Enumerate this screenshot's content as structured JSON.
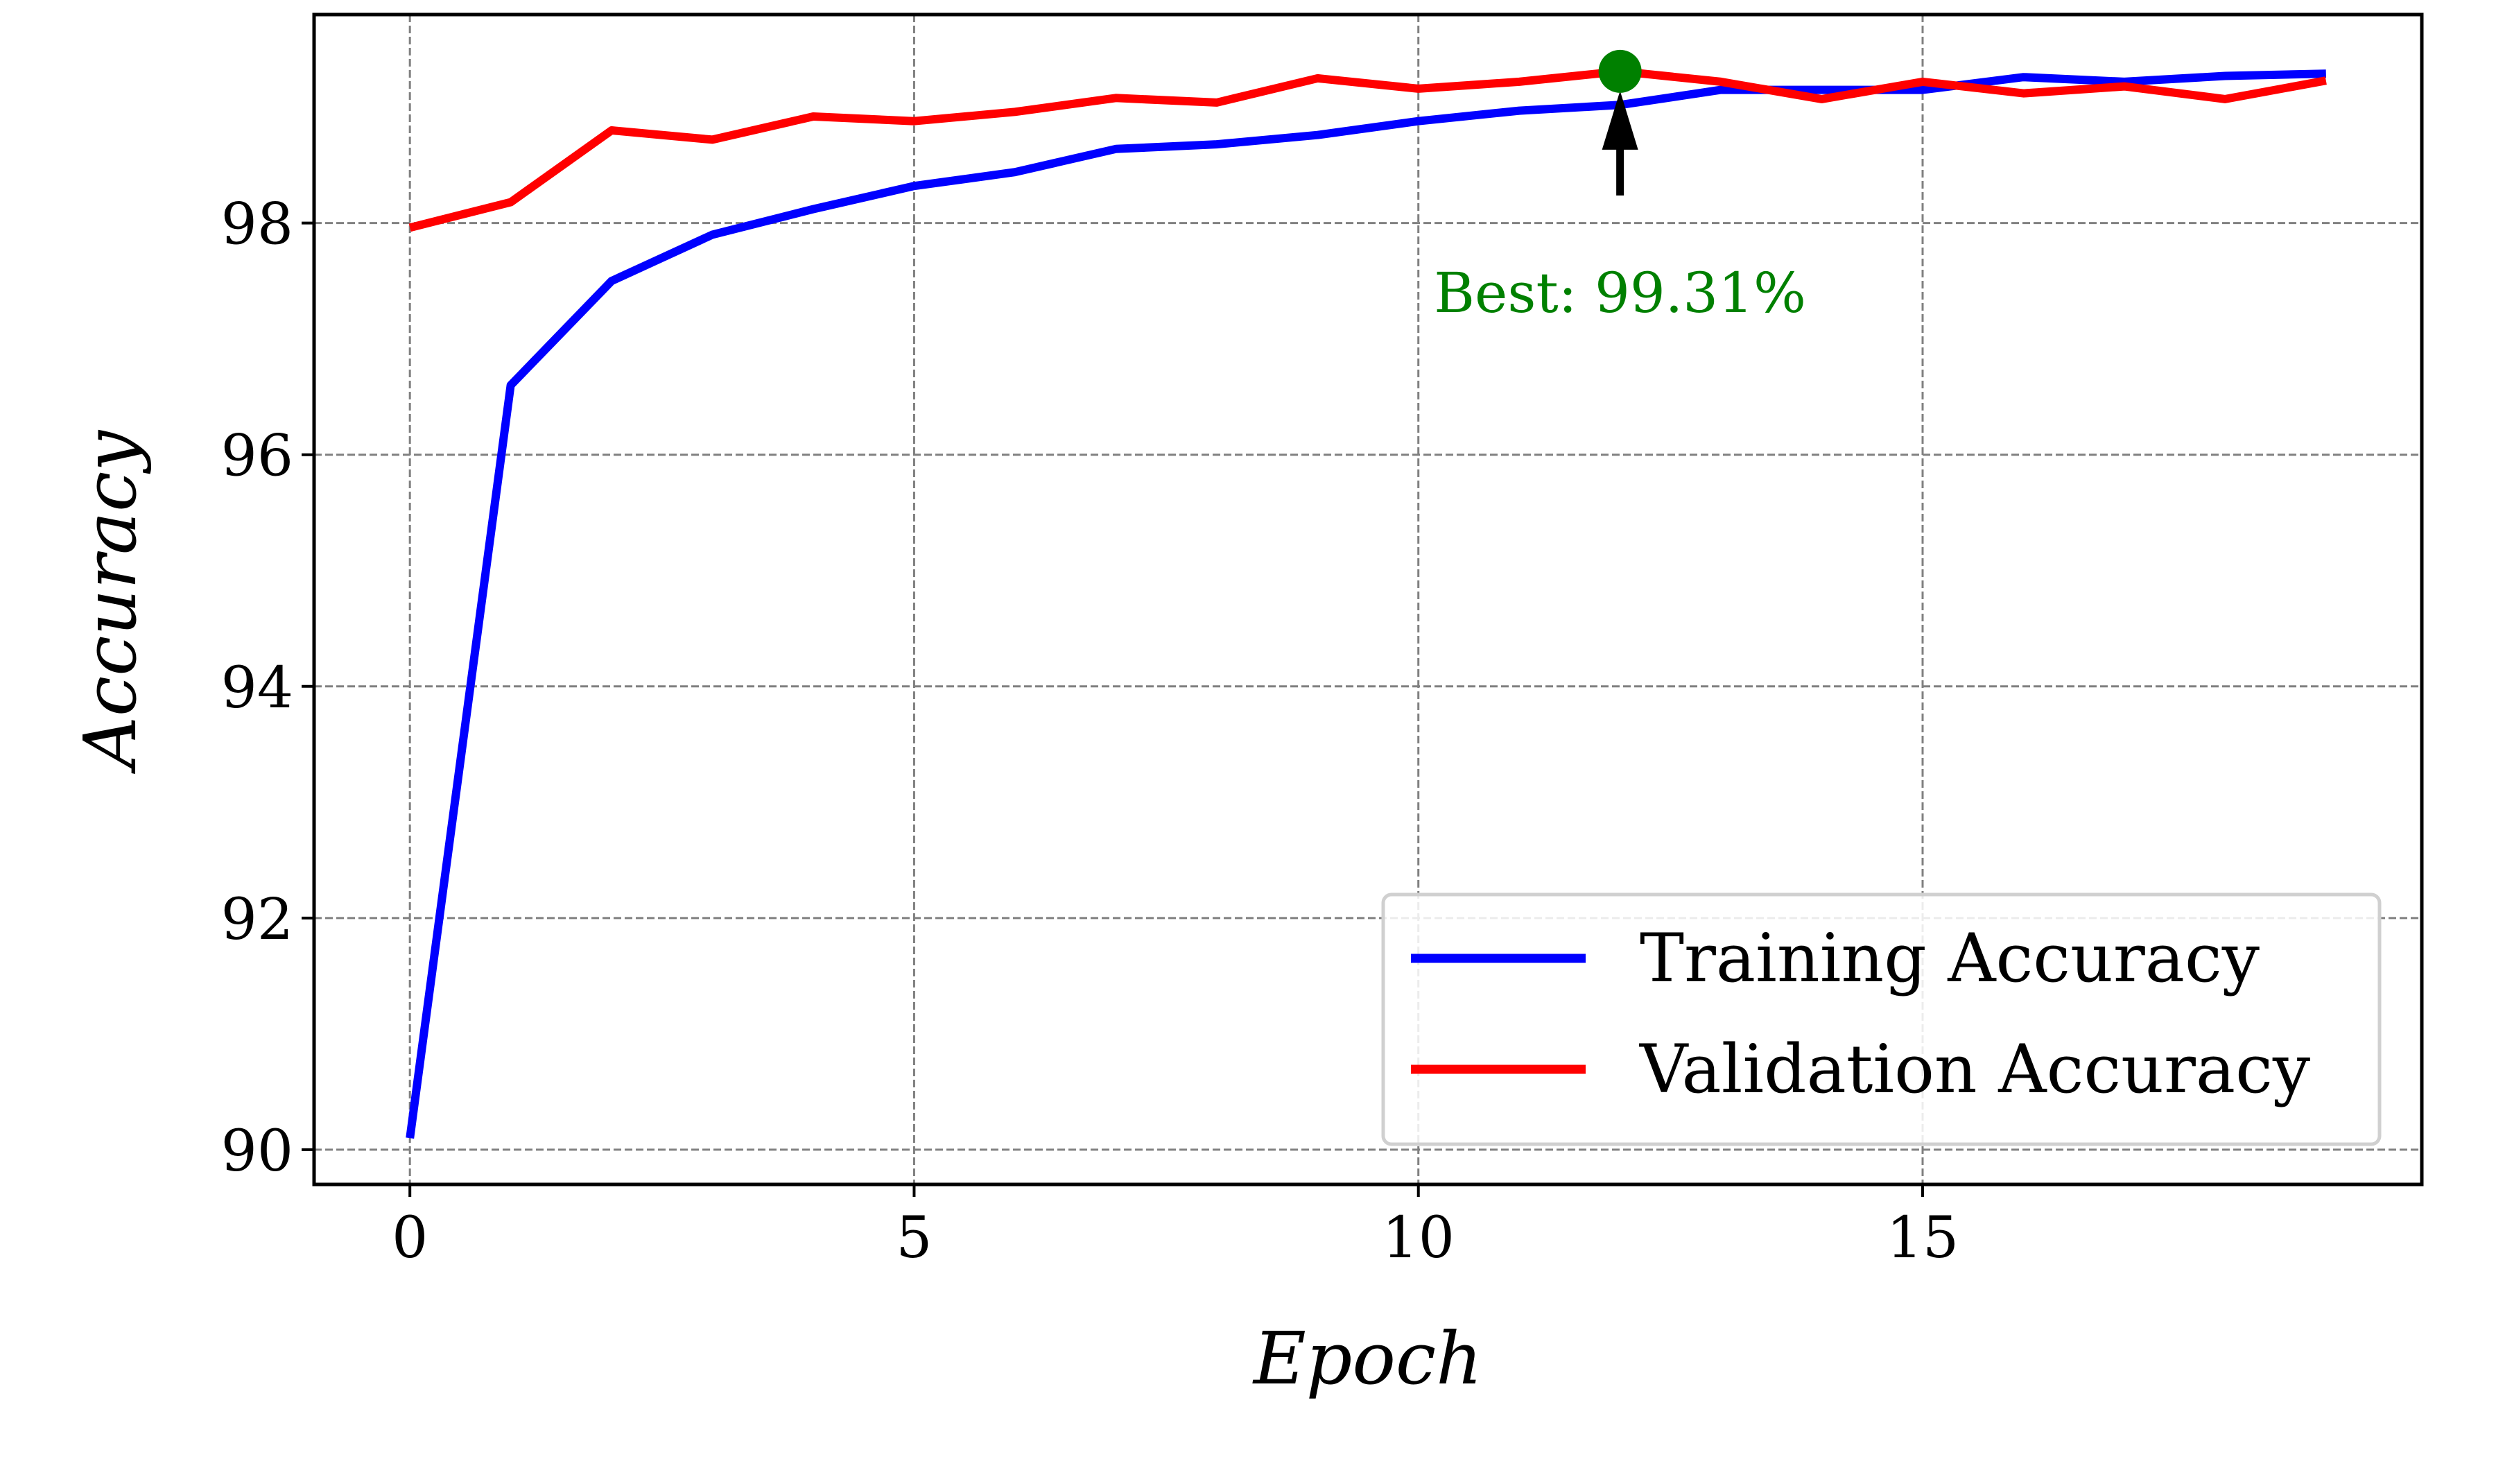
{
  "chart_data": {
    "type": "line",
    "title": "",
    "xlabel": "Epoch",
    "ylabel": "Accuracy",
    "xlim": [
      -0.95,
      19.95
    ],
    "ylim": [
      89.7,
      99.8
    ],
    "x_ticks": [
      0,
      5,
      10,
      15
    ],
    "x_tick_labels": [
      "0",
      "5",
      "10",
      "15"
    ],
    "y_ticks": [
      90,
      92,
      94,
      96,
      98
    ],
    "y_tick_labels": [
      "90",
      "92",
      "94",
      "96",
      "98"
    ],
    "grid": true,
    "legend_position": "lower-right",
    "x": [
      0,
      1,
      2,
      3,
      4,
      5,
      6,
      7,
      8,
      9,
      10,
      11,
      12,
      13,
      14,
      15,
      16,
      17,
      18,
      19
    ],
    "series": [
      {
        "name": "Training Accuracy",
        "color": "#0000ff",
        "values": [
          90.1,
          96.6,
          97.5,
          97.9,
          98.12,
          98.32,
          98.44,
          98.64,
          98.68,
          98.76,
          98.88,
          98.97,
          99.02,
          99.15,
          99.15,
          99.15,
          99.26,
          99.22,
          99.27,
          99.29
        ]
      },
      {
        "name": "Validation Accuracy",
        "color": "#ff0000",
        "values": [
          97.96,
          98.18,
          98.8,
          98.72,
          98.92,
          98.88,
          98.96,
          99.08,
          99.04,
          99.25,
          99.16,
          99.22,
          99.31,
          99.22,
          99.07,
          99.22,
          99.12,
          99.18,
          99.07,
          99.23
        ]
      }
    ],
    "annotation": {
      "text": "Best: 99.31%",
      "x": 12,
      "y": 99.31,
      "text_y": 97.4,
      "color": "#008000",
      "arrow_color": "#000000"
    }
  }
}
